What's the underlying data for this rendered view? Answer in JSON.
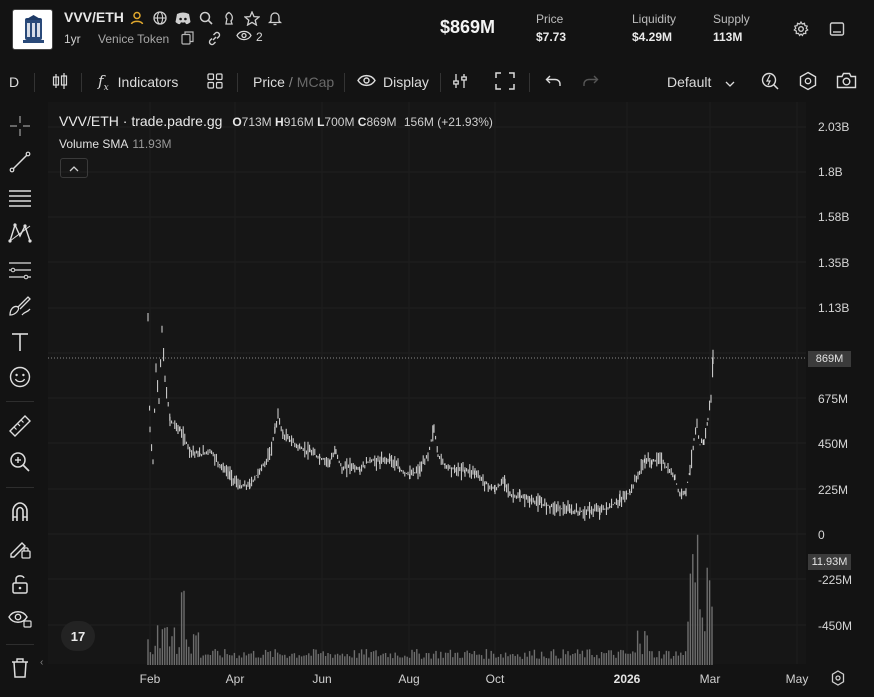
{
  "header": {
    "pair": "VVV/ETH",
    "age": "1yr",
    "token_name": "Venice Token",
    "watchers": "2",
    "market_cap": "$869M",
    "stats": [
      {
        "label": "Price",
        "value": "$7.73"
      },
      {
        "label": "Liquidity",
        "value": "$4.29M"
      },
      {
        "label": "Supply",
        "value": "113M"
      }
    ]
  },
  "toolbar": {
    "interval": "D",
    "indicators_label": "Indicators",
    "price_label": "Price",
    "slash": "/",
    "mcap_label": "MCap",
    "display_label": "Display",
    "layout_label": "Default"
  },
  "legend": {
    "symbol": "VVV/ETH · trade.padre.gg",
    "open_label": "O",
    "open": "713M",
    "high_label": "H",
    "high": "916M",
    "low_label": "L",
    "low": "700M",
    "close_label": "C",
    "close": "869M",
    "volume": "156M",
    "change": "(+21.93%)",
    "study_name": "Volume SMA",
    "study_value": "11.93M"
  },
  "price_axis": {
    "labels": [
      "2.03B",
      "1.8B",
      "1.58B",
      "1.35B",
      "1.13B",
      "675M",
      "450M",
      "225M",
      "0",
      "-225M",
      "-450M"
    ],
    "last_price_tag": "869M",
    "volume_tag": "11.93M"
  },
  "time_axis": {
    "labels": [
      "Feb",
      "Apr",
      "Jun",
      "Aug",
      "Oct",
      "2026",
      "Mar",
      "May"
    ],
    "bold_label": "2026"
  },
  "tv_logo_text": "17",
  "colors": {
    "background": "#131313",
    "chart_bg": "#161616",
    "candle": "#d9d9d9",
    "volume": "#7a7a7a",
    "accent_gold": "#e0a82e"
  }
}
